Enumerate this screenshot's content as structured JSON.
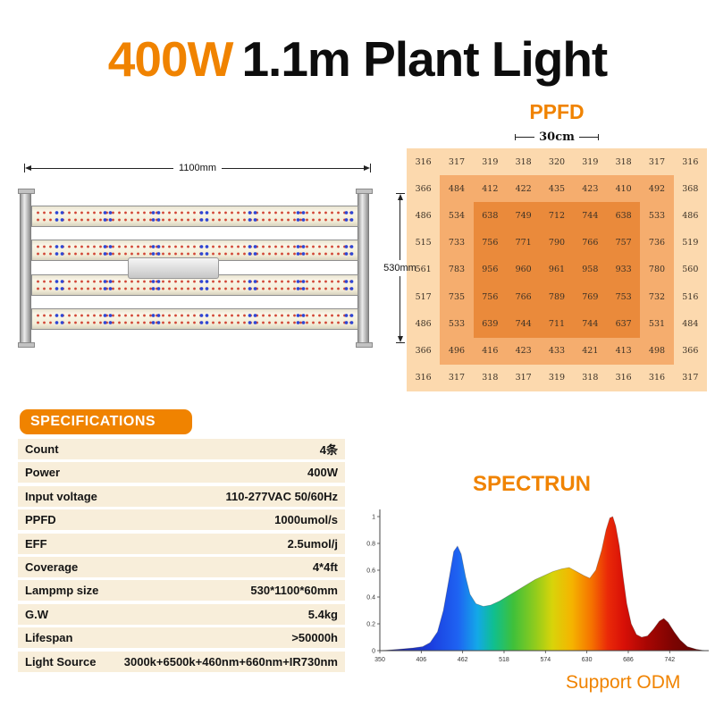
{
  "page": {
    "accent": "#f08300"
  },
  "title": {
    "wattage": "400W",
    "name": "1.1m Plant Light"
  },
  "ppfd": {
    "heading": "PPFD",
    "distance_label": "30cm"
  },
  "fixture": {
    "width_label": "1100mm",
    "height_label": "530mm"
  },
  "specs": {
    "heading": "SPECIFICATIONS",
    "rows": [
      {
        "label": "Count",
        "value": "4条"
      },
      {
        "label": "Power",
        "value": "400W"
      },
      {
        "label": "Input voltage",
        "value": "110-277VAC 50/60Hz"
      },
      {
        "label": "PPFD",
        "value": "1000umol/s"
      },
      {
        "label": "EFF",
        "value": "2.5umol/j"
      },
      {
        "label": "Coverage",
        "value": "4*4ft"
      },
      {
        "label": "Lampmp size",
        "value": "530*1100*60mm"
      },
      {
        "label": "G.W",
        "value": "5.4kg"
      },
      {
        "label": "Lifespan",
        "value": ">50000h"
      },
      {
        "label": "Light Source",
        "value": "3000k+6500k+460nm+660nm+IR730nm"
      }
    ]
  },
  "spectrum": {
    "heading": "SPECTRUN",
    "footer": "Support ODM"
  },
  "chart_data": [
    {
      "type": "heatmap",
      "title": "PPFD",
      "note": "30cm",
      "rows": 9,
      "cols": 9,
      "values": [
        [
          316,
          317,
          319,
          318,
          320,
          319,
          318,
          317,
          316
        ],
        [
          366,
          484,
          412,
          422,
          435,
          423,
          410,
          492,
          368
        ],
        [
          486,
          534,
          638,
          749,
          712,
          744,
          638,
          533,
          486
        ],
        [
          515,
          733,
          756,
          771,
          790,
          766,
          757,
          736,
          519
        ],
        [
          561,
          783,
          956,
          960,
          961,
          958,
          933,
          780,
          560
        ],
        [
          517,
          735,
          756,
          766,
          789,
          769,
          753,
          732,
          516
        ],
        [
          486,
          533,
          639,
          744,
          711,
          744,
          637,
          531,
          484
        ],
        [
          366,
          496,
          416,
          423,
          433,
          421,
          413,
          498,
          366
        ],
        [
          316,
          317,
          318,
          317,
          319,
          318,
          316,
          316,
          317
        ]
      ],
      "colors": {
        "outer": "#fcd9ae",
        "mid": "#f5ad6e",
        "inner": "#ea8a3b"
      }
    },
    {
      "type": "area",
      "title": "SPECTRUN",
      "xlabel": "",
      "ylabel": "",
      "xlim": [
        350,
        790
      ],
      "ylim": [
        0,
        1
      ],
      "xticks": [
        350,
        406,
        462,
        518,
        574,
        630,
        686,
        742
      ],
      "yticks": [
        0,
        0.2,
        0.4,
        0.6,
        0.8,
        1
      ],
      "points": [
        [
          350,
          0.0
        ],
        [
          375,
          0.01
        ],
        [
          395,
          0.02
        ],
        [
          408,
          0.03
        ],
        [
          418,
          0.06
        ],
        [
          428,
          0.14
        ],
        [
          436,
          0.3
        ],
        [
          444,
          0.55
        ],
        [
          450,
          0.74
        ],
        [
          455,
          0.78
        ],
        [
          460,
          0.72
        ],
        [
          466,
          0.55
        ],
        [
          472,
          0.42
        ],
        [
          480,
          0.35
        ],
        [
          490,
          0.33
        ],
        [
          500,
          0.34
        ],
        [
          512,
          0.37
        ],
        [
          524,
          0.41
        ],
        [
          536,
          0.45
        ],
        [
          548,
          0.49
        ],
        [
          560,
          0.53
        ],
        [
          572,
          0.56
        ],
        [
          584,
          0.59
        ],
        [
          596,
          0.61
        ],
        [
          606,
          0.62
        ],
        [
          616,
          0.59
        ],
        [
          626,
          0.56
        ],
        [
          634,
          0.54
        ],
        [
          642,
          0.6
        ],
        [
          650,
          0.75
        ],
        [
          656,
          0.9
        ],
        [
          661,
          0.99
        ],
        [
          665,
          1.0
        ],
        [
          669,
          0.93
        ],
        [
          674,
          0.78
        ],
        [
          679,
          0.55
        ],
        [
          684,
          0.35
        ],
        [
          690,
          0.2
        ],
        [
          697,
          0.12
        ],
        [
          704,
          0.1
        ],
        [
          712,
          0.11
        ],
        [
          720,
          0.16
        ],
        [
          728,
          0.22
        ],
        [
          734,
          0.24
        ],
        [
          740,
          0.21
        ],
        [
          748,
          0.14
        ],
        [
          756,
          0.08
        ],
        [
          766,
          0.03
        ],
        [
          778,
          0.01
        ],
        [
          790,
          0.0
        ]
      ],
      "gradient": [
        [
          "0%",
          "#241a7a"
        ],
        [
          "16%",
          "#1b3fe0"
        ],
        [
          "24%",
          "#1e63f2"
        ],
        [
          "30%",
          "#13a8e8"
        ],
        [
          "35%",
          "#0fbf8f"
        ],
        [
          "41%",
          "#3fc03a"
        ],
        [
          "48%",
          "#93cc1c"
        ],
        [
          "53%",
          "#d8d40a"
        ],
        [
          "59%",
          "#f5b400"
        ],
        [
          "65%",
          "#f57300"
        ],
        [
          "70%",
          "#ea2a08"
        ],
        [
          "75%",
          "#d81007"
        ],
        [
          "82%",
          "#a80603"
        ],
        [
          "90%",
          "#7d0402"
        ],
        [
          "100%",
          "#5a0302"
        ]
      ]
    }
  ]
}
